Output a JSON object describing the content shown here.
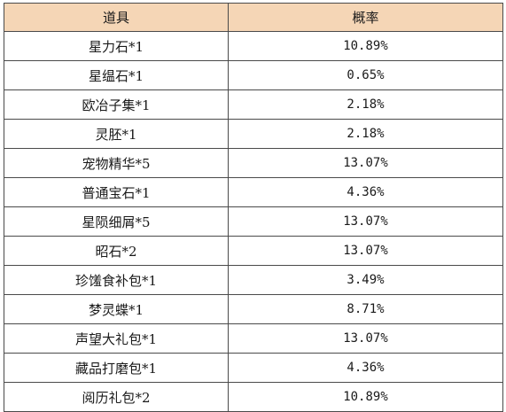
{
  "table": {
    "headers": [
      "道具",
      "概率"
    ],
    "rows": [
      [
        "星力石*1",
        "10.89%"
      ],
      [
        "星缊石*1",
        "0.65%"
      ],
      [
        "欧冶子集*1",
        "2.18%"
      ],
      [
        "灵胚*1",
        "2.18%"
      ],
      [
        "宠物精华*5",
        "13.07%"
      ],
      [
        "普通宝石*1",
        "4.36%"
      ],
      [
        "星陨细屑*5",
        "13.07%"
      ],
      [
        "昭石*2",
        "13.07%"
      ],
      [
        "珍馐食补包*1",
        "3.49%"
      ],
      [
        "梦灵蝶*1",
        "8.71%"
      ],
      [
        "声望大礼包*1",
        "13.07%"
      ],
      [
        "藏品打磨包*1",
        "4.36%"
      ],
      [
        "阅历礼包*2",
        "10.89%"
      ]
    ]
  },
  "colors": {
    "header_bg": "#f5d6b6",
    "border": "#4a4a4a"
  }
}
